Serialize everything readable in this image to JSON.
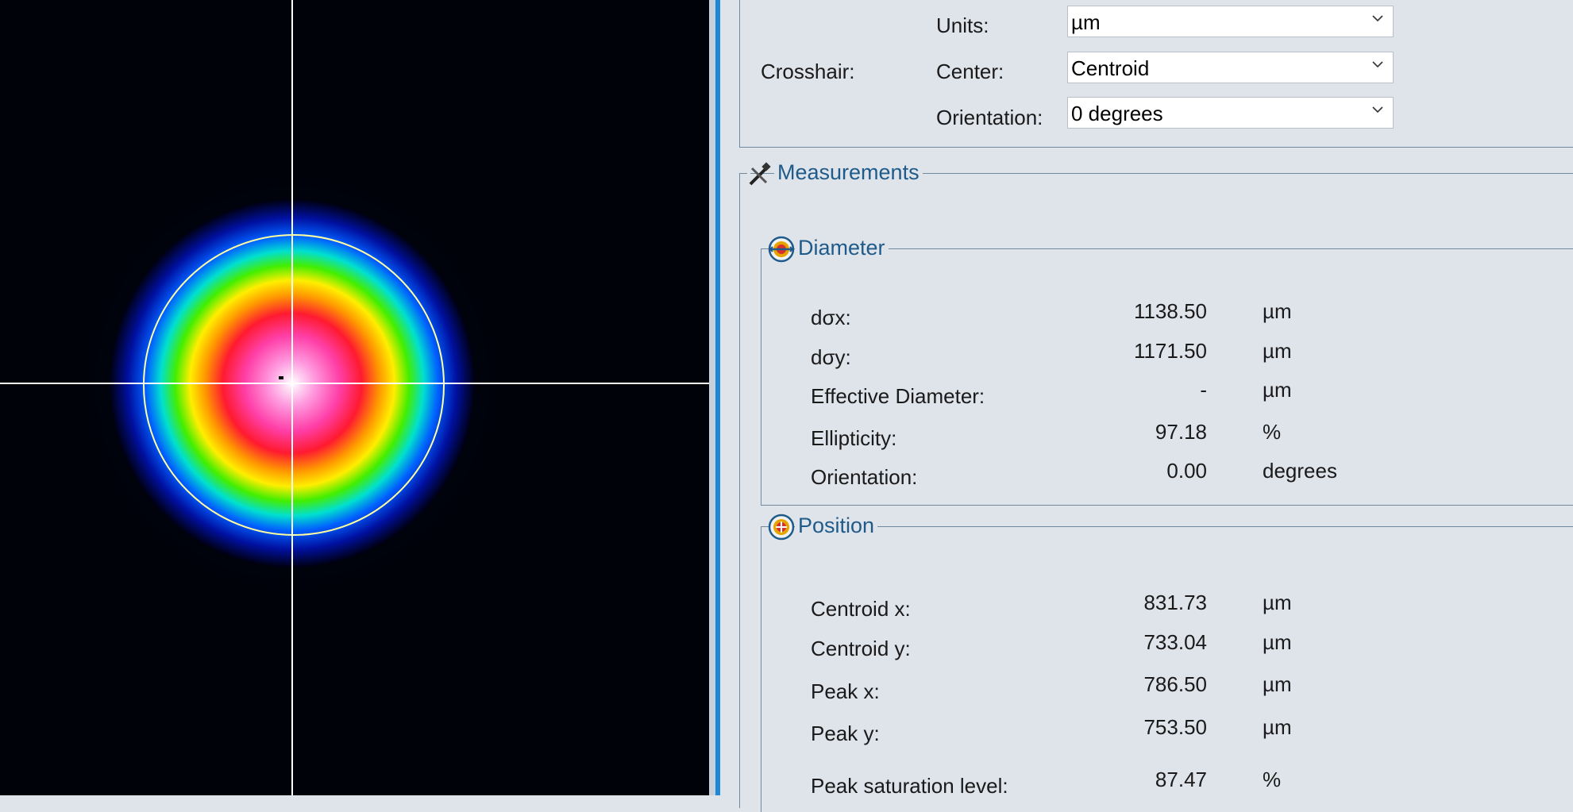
{
  "crosshair": {
    "label": "Crosshair:",
    "units_label": "Units:",
    "units_value": "µm",
    "center_label": "Center:",
    "center_value": "Centroid",
    "orientation_label": "Orientation:",
    "orientation_value": "0 degrees"
  },
  "measurements": {
    "title": "Measurements",
    "icon": "measure-tool-icon"
  },
  "diameter": {
    "title": "Diameter",
    "icon": "diameter-icon",
    "rows": [
      {
        "label": "dσx:",
        "value": "1138.50",
        "unit": "µm"
      },
      {
        "label": "dσy:",
        "value": "1171.50",
        "unit": "µm"
      },
      {
        "label": "Effective Diameter:",
        "value": "-",
        "unit": "µm"
      },
      {
        "label": "Ellipticity:",
        "value": "97.18",
        "unit": "%"
      },
      {
        "label": "Orientation:",
        "value": "0.00",
        "unit": "degrees"
      }
    ]
  },
  "position": {
    "title": "Position",
    "icon": "position-icon",
    "rows": [
      {
        "label": "Centroid x:",
        "value": "831.73",
        "unit": "µm"
      },
      {
        "label": "Centroid y:",
        "value": "733.04",
        "unit": "µm"
      },
      {
        "label": "Peak x:",
        "value": "786.50",
        "unit": "µm"
      },
      {
        "label": "Peak y:",
        "value": "753.50",
        "unit": "µm"
      },
      {
        "label": "Peak saturation level:",
        "value": "87.47",
        "unit": "%"
      }
    ]
  },
  "colors": {
    "group_title": "#1f5b8a",
    "accent": "#1e88d6",
    "panel_bg": "#dfe3ea"
  }
}
